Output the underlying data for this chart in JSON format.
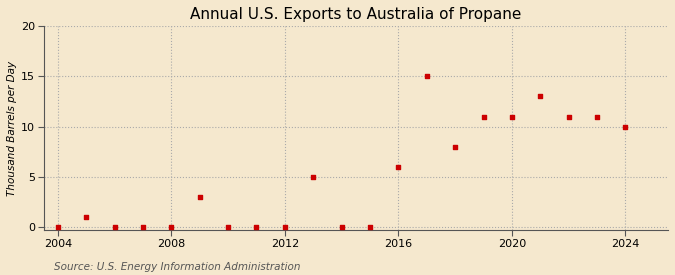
{
  "title": "Annual U.S. Exports to Australia of Propane",
  "ylabel": "Thousand Barrels per Day",
  "source": "Source: U.S. Energy Information Administration",
  "years": [
    2004,
    2005,
    2006,
    2007,
    2008,
    2009,
    2010,
    2011,
    2012,
    2013,
    2014,
    2015,
    2016,
    2017,
    2018,
    2019,
    2020,
    2021,
    2022,
    2023,
    2024
  ],
  "values": [
    0.0,
    1.0,
    0.0,
    0.0,
    0.0,
    3.0,
    0.0,
    0.0,
    0.0,
    5.0,
    0.0,
    0.0,
    6.0,
    15.0,
    8.0,
    11.0,
    11.0,
    13.0,
    11.0,
    11.0,
    10.0
  ],
  "xlim": [
    2003.5,
    2025.5
  ],
  "ylim": [
    -0.3,
    20
  ],
  "yticks": [
    0,
    5,
    10,
    15,
    20
  ],
  "xticks": [
    2004,
    2008,
    2012,
    2016,
    2020,
    2024
  ],
  "marker_color": "#cc0000",
  "marker": "s",
  "marker_size": 3.5,
  "bg_color": "#f5e8ce",
  "plot_bg_color": "#f5e8ce",
  "grid_color": "#aaaaaa",
  "title_fontsize": 11,
  "label_fontsize": 7.5,
  "tick_fontsize": 8,
  "source_fontsize": 7.5
}
